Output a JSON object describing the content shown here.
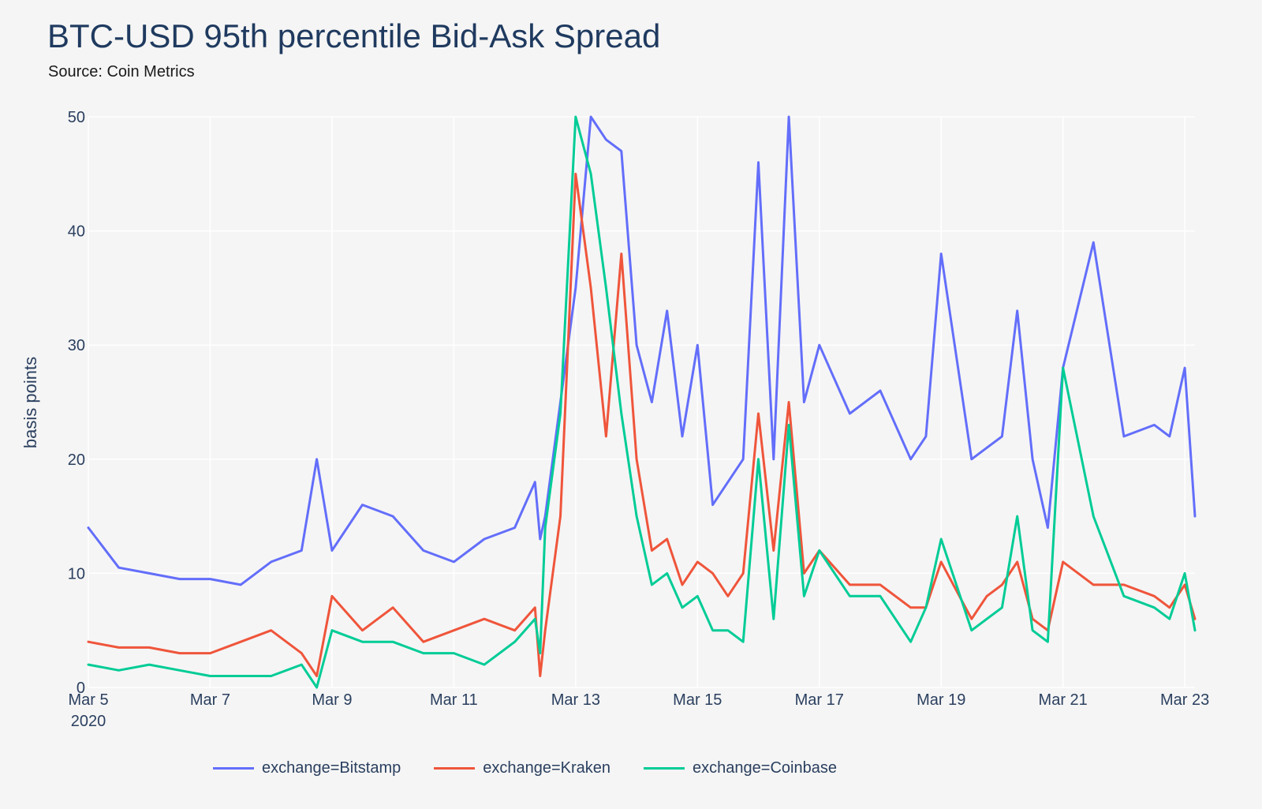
{
  "title": "BTC-USD 95th percentile Bid-Ask Spread",
  "subtitle": "Source: Coin Metrics",
  "colors": {
    "Bitstamp": "#636efa",
    "Kraken": "#ef553b",
    "Coinbase": "#00cc96",
    "grid": "#ffffff",
    "background": "#f5f5f5"
  },
  "chart_data": {
    "type": "line",
    "title": "BTC-USD 95th percentile Bid-Ask Spread",
    "subtitle": "Source: Coin Metrics",
    "xlabel": "",
    "ylabel": "basis points",
    "xlim": [
      "2020-03-05",
      "2020-03-23 04:00"
    ],
    "ylim": [
      0,
      50
    ],
    "yticks": [
      0,
      10,
      20,
      30,
      40,
      50
    ],
    "xticks": [
      {
        "date": "2020-03-05",
        "label": "Mar 5",
        "sublabel": "2020"
      },
      {
        "date": "2020-03-07",
        "label": "Mar 7"
      },
      {
        "date": "2020-03-09",
        "label": "Mar 9"
      },
      {
        "date": "2020-03-11",
        "label": "Mar 11"
      },
      {
        "date": "2020-03-13",
        "label": "Mar 13"
      },
      {
        "date": "2020-03-15",
        "label": "Mar 15"
      },
      {
        "date": "2020-03-17",
        "label": "Mar 17"
      },
      {
        "date": "2020-03-19",
        "label": "Mar 19"
      },
      {
        "date": "2020-03-21",
        "label": "Mar 21"
      },
      {
        "date": "2020-03-23",
        "label": "Mar 23"
      }
    ],
    "grid": true,
    "legend_position": "bottom",
    "series": [
      {
        "name": "exchange=Bitstamp",
        "x": [
          "2020-03-05 00:00",
          "2020-03-05 12:00",
          "2020-03-06 00:00",
          "2020-03-06 12:00",
          "2020-03-07 00:00",
          "2020-03-07 12:00",
          "2020-03-08 00:00",
          "2020-03-08 12:00",
          "2020-03-08 18:00",
          "2020-03-09 00:00",
          "2020-03-09 12:00",
          "2020-03-10 00:00",
          "2020-03-10 12:00",
          "2020-03-11 00:00",
          "2020-03-11 12:00",
          "2020-03-12 00:00",
          "2020-03-12 08:00",
          "2020-03-12 10:00",
          "2020-03-12 12:00",
          "2020-03-12 18:00",
          "2020-03-13 00:00",
          "2020-03-13 06:00",
          "2020-03-13 12:00",
          "2020-03-13 18:00",
          "2020-03-14 00:00",
          "2020-03-14 06:00",
          "2020-03-14 12:00",
          "2020-03-14 18:00",
          "2020-03-15 00:00",
          "2020-03-15 06:00",
          "2020-03-15 12:00",
          "2020-03-15 18:00",
          "2020-03-16 00:00",
          "2020-03-16 06:00",
          "2020-03-16 12:00",
          "2020-03-16 18:00",
          "2020-03-17 00:00",
          "2020-03-17 12:00",
          "2020-03-18 00:00",
          "2020-03-18 12:00",
          "2020-03-18 18:00",
          "2020-03-19 00:00",
          "2020-03-19 12:00",
          "2020-03-19 18:00",
          "2020-03-20 00:00",
          "2020-03-20 06:00",
          "2020-03-20 12:00",
          "2020-03-20 18:00",
          "2020-03-21 00:00",
          "2020-03-21 12:00",
          "2020-03-22 00:00",
          "2020-03-22 12:00",
          "2020-03-22 18:00",
          "2020-03-23 00:00",
          "2020-03-23 04:00"
        ],
        "y": [
          14,
          10.5,
          10,
          9.5,
          9.5,
          9,
          11,
          12,
          20,
          12,
          16,
          15,
          12,
          11,
          13,
          14,
          18,
          13,
          15,
          25,
          35,
          50,
          48,
          47,
          30,
          25,
          33,
          22,
          30,
          16,
          18,
          20,
          46,
          20,
          50,
          25,
          30,
          24,
          26,
          20,
          22,
          38,
          20,
          21,
          22,
          33,
          20,
          14,
          28,
          39,
          22,
          23,
          22,
          28,
          15
        ]
      },
      {
        "name": "exchange=Kraken",
        "x": [
          "2020-03-05 00:00",
          "2020-03-05 12:00",
          "2020-03-06 00:00",
          "2020-03-06 12:00",
          "2020-03-07 00:00",
          "2020-03-07 12:00",
          "2020-03-08 00:00",
          "2020-03-08 12:00",
          "2020-03-08 18:00",
          "2020-03-09 00:00",
          "2020-03-09 12:00",
          "2020-03-10 00:00",
          "2020-03-10 12:00",
          "2020-03-11 00:00",
          "2020-03-11 12:00",
          "2020-03-12 00:00",
          "2020-03-12 08:00",
          "2020-03-12 10:00",
          "2020-03-12 12:00",
          "2020-03-12 18:00",
          "2020-03-13 00:00",
          "2020-03-13 06:00",
          "2020-03-13 12:00",
          "2020-03-13 18:00",
          "2020-03-14 00:00",
          "2020-03-14 06:00",
          "2020-03-14 12:00",
          "2020-03-14 18:00",
          "2020-03-15 00:00",
          "2020-03-15 06:00",
          "2020-03-15 12:00",
          "2020-03-15 18:00",
          "2020-03-16 00:00",
          "2020-03-16 06:00",
          "2020-03-16 12:00",
          "2020-03-16 18:00",
          "2020-03-17 00:00",
          "2020-03-17 12:00",
          "2020-03-18 00:00",
          "2020-03-18 12:00",
          "2020-03-18 18:00",
          "2020-03-19 00:00",
          "2020-03-19 12:00",
          "2020-03-19 18:00",
          "2020-03-20 00:00",
          "2020-03-20 06:00",
          "2020-03-20 12:00",
          "2020-03-20 18:00",
          "2020-03-21 00:00",
          "2020-03-21 12:00",
          "2020-03-22 00:00",
          "2020-03-22 12:00",
          "2020-03-22 18:00",
          "2020-03-23 00:00",
          "2020-03-23 04:00"
        ],
        "y": [
          4,
          3.5,
          3.5,
          3,
          3,
          4,
          5,
          3,
          1,
          8,
          5,
          7,
          4,
          5,
          6,
          5,
          7,
          1,
          5,
          15,
          45,
          35,
          22,
          38,
          20,
          12,
          13,
          9,
          11,
          10,
          8,
          10,
          24,
          12,
          25,
          10,
          12,
          9,
          9,
          7,
          7,
          11,
          6,
          8,
          9,
          11,
          6,
          5,
          11,
          9,
          9,
          8,
          7,
          9,
          6
        ]
      },
      {
        "name": "exchange=Coinbase",
        "x": [
          "2020-03-05 00:00",
          "2020-03-05 12:00",
          "2020-03-06 00:00",
          "2020-03-06 12:00",
          "2020-03-07 00:00",
          "2020-03-07 12:00",
          "2020-03-08 00:00",
          "2020-03-08 12:00",
          "2020-03-08 18:00",
          "2020-03-09 00:00",
          "2020-03-09 12:00",
          "2020-03-10 00:00",
          "2020-03-10 12:00",
          "2020-03-11 00:00",
          "2020-03-11 12:00",
          "2020-03-12 00:00",
          "2020-03-12 08:00",
          "2020-03-12 10:00",
          "2020-03-12 12:00",
          "2020-03-12 18:00",
          "2020-03-13 00:00",
          "2020-03-13 06:00",
          "2020-03-13 12:00",
          "2020-03-13 18:00",
          "2020-03-14 00:00",
          "2020-03-14 06:00",
          "2020-03-14 12:00",
          "2020-03-14 18:00",
          "2020-03-15 00:00",
          "2020-03-15 06:00",
          "2020-03-15 12:00",
          "2020-03-15 18:00",
          "2020-03-16 00:00",
          "2020-03-16 06:00",
          "2020-03-16 12:00",
          "2020-03-16 18:00",
          "2020-03-17 00:00",
          "2020-03-17 12:00",
          "2020-03-18 00:00",
          "2020-03-18 12:00",
          "2020-03-18 18:00",
          "2020-03-19 00:00",
          "2020-03-19 12:00",
          "2020-03-19 18:00",
          "2020-03-20 00:00",
          "2020-03-20 06:00",
          "2020-03-20 12:00",
          "2020-03-20 18:00",
          "2020-03-21 00:00",
          "2020-03-21 12:00",
          "2020-03-22 00:00",
          "2020-03-22 12:00",
          "2020-03-22 18:00",
          "2020-03-23 00:00",
          "2020-03-23 04:00"
        ],
        "y": [
          2,
          1.5,
          2,
          1.5,
          1,
          1,
          1,
          2,
          0,
          5,
          4,
          4,
          3,
          3,
          2,
          4,
          6,
          3,
          14,
          24,
          50,
          45,
          35,
          24,
          15,
          9,
          10,
          7,
          8,
          5,
          5,
          4,
          20,
          6,
          23,
          8,
          12,
          8,
          8,
          4,
          7,
          13,
          5,
          6,
          7,
          15,
          5,
          4,
          28,
          15,
          8,
          7,
          6,
          10,
          5
        ]
      }
    ]
  }
}
